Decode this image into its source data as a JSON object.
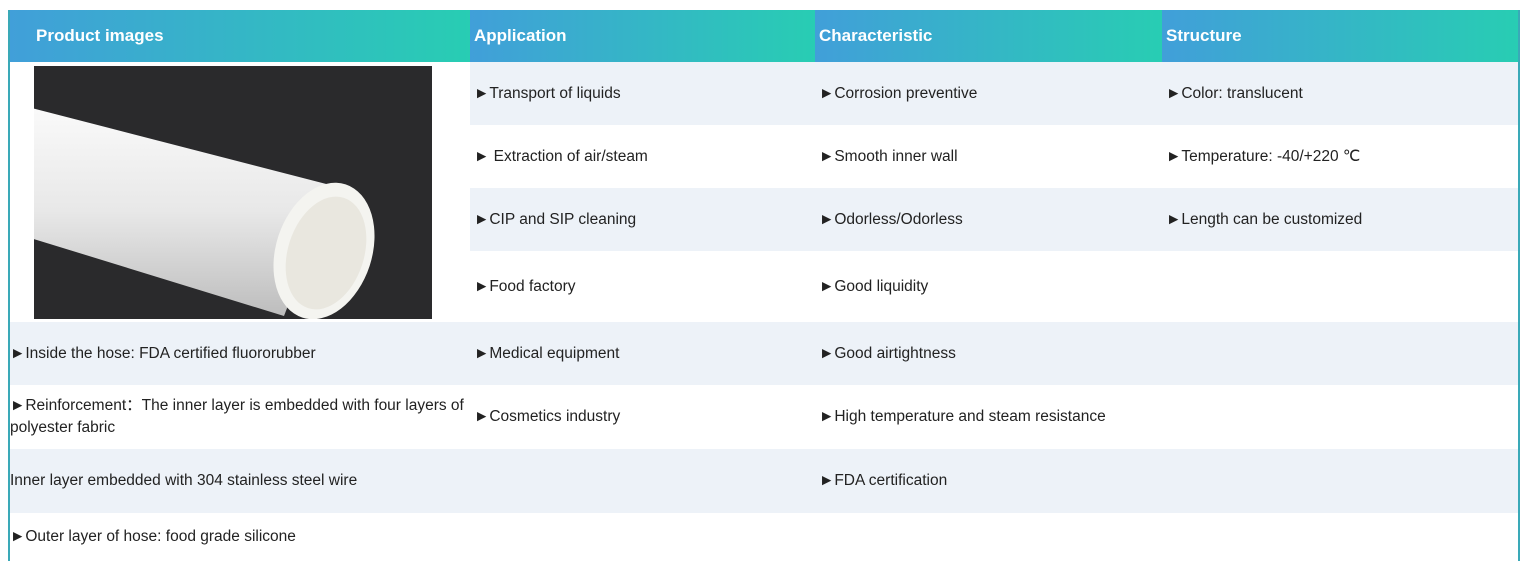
{
  "table": {
    "header": [
      "Product images",
      "Application",
      "Characteristic",
      "Structure"
    ],
    "rows": [
      {
        "application": "►Transport of liquids",
        "characteristic": "►Corrosion preventive",
        "structure": "►Color: translucent"
      },
      {
        "application": "► Extraction of air/steam",
        "characteristic": "►Smooth inner wall",
        "structure": "►Temperature:  -40/+220 ℃"
      },
      {
        "application": "►CIP and SIP cleaning",
        "characteristic": "►Odorless/Odorless",
        "structure": "►Length can be customized"
      },
      {
        "application": "►Food factory",
        "characteristic": "►Good liquidity"
      },
      {
        "product": "►Inside the hose: FDA certified fluororubber",
        "application": "►Medical equipment",
        "characteristic": "►Good airtightness"
      },
      {
        "product": "►Reinforcement：The inner layer is embedded with four layers of polyester fabric",
        "application": "►Cosmetics industry",
        "characteristic": "►High temperature and steam resistance"
      },
      {
        "product": "Inner layer embedded with 304 stainless steel wire",
        "characteristic": "►FDA certification"
      },
      {
        "product": "►Outer layer of hose: food grade silicone"
      }
    ]
  }
}
